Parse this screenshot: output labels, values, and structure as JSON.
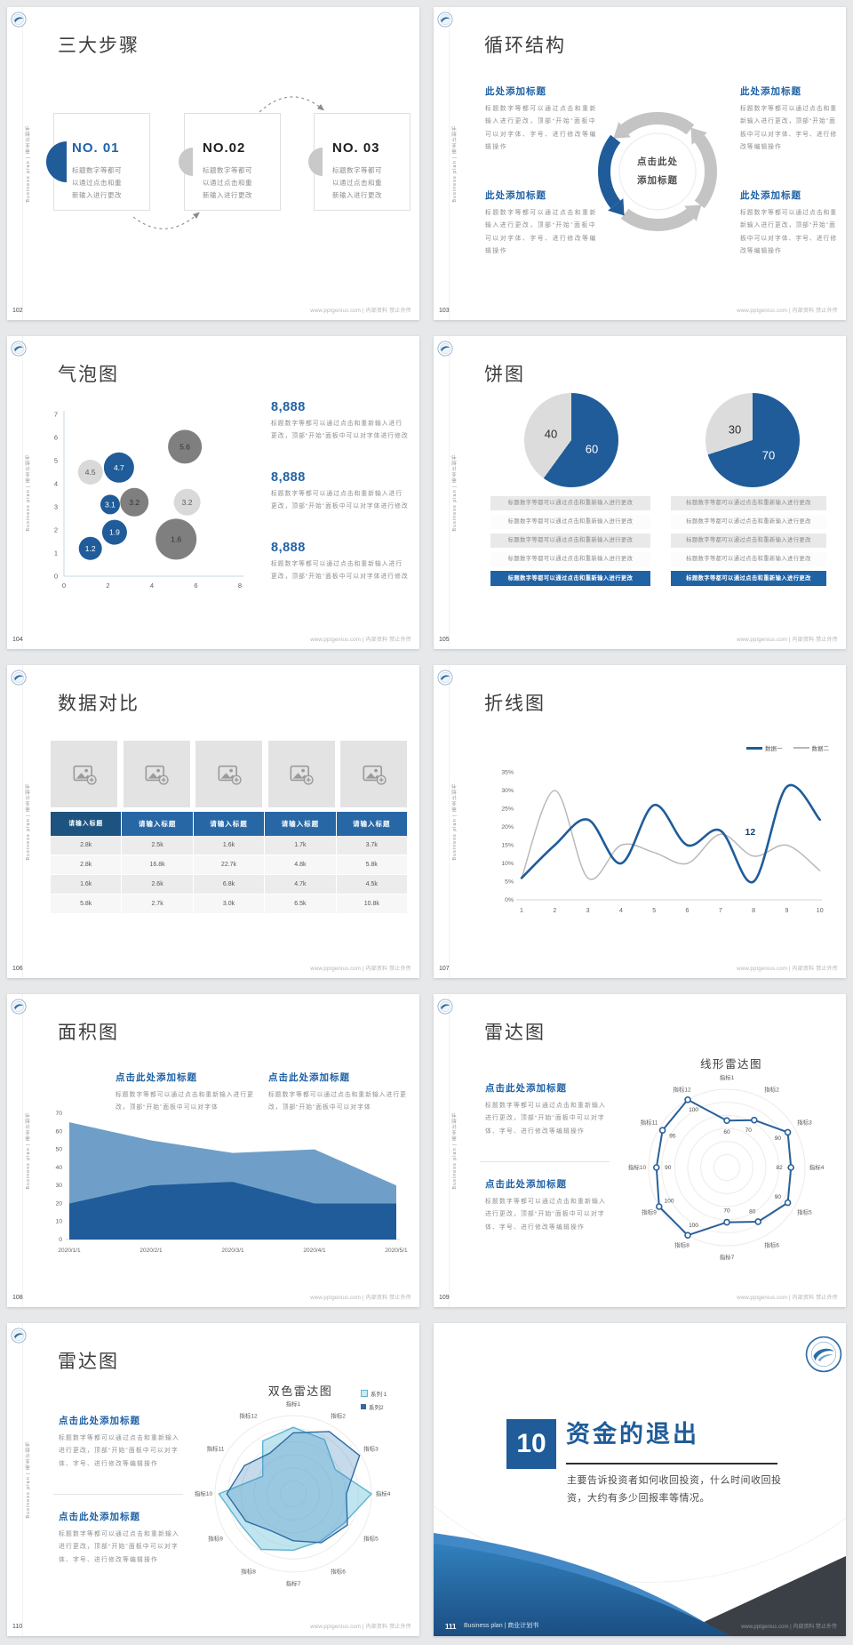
{
  "common": {
    "sidebar": "Business plan | 商业计划书",
    "footer_url": "www.pptgenius.com | 内部资料 禁止外传"
  },
  "colors": {
    "accent": "#1f5c99",
    "accent_dark": "#17456e",
    "dark_gray": "#7f7f7f",
    "light_gray": "#d9d9d9"
  },
  "slides": {
    "s102": {
      "page": "102",
      "title": "三大步骤",
      "cards": [
        {
          "no": "NO. 01",
          "body": "标题数字等都可以通过点击和重新输入进行更改"
        },
        {
          "no": "NO.02",
          "body": "标题数字等都可以通过点击和重新输入进行更改"
        },
        {
          "no": "NO. 03",
          "body": "标题数字等都可以通过点击和重新输入进行更改"
        }
      ]
    },
    "s103": {
      "page": "103",
      "title": "循环结构",
      "center": "点击此处添加标题",
      "blocks": [
        {
          "heading": "此处添加标题",
          "body": "标题数字等都可以通过点击和重新输入进行更改，顶部“开始”面板中可以对字体、字号、进行修改等编辑操作"
        },
        {
          "heading": "此处添加标题",
          "body": "标题数字等都可以通过点击和重新输入进行更改，顶部“开始”面板中可以对字体、字号、进行修改等编辑操作"
        },
        {
          "heading": "此处添加标题",
          "body": "标题数字等都可以通过点击和重新输入进行更改，顶部“开始”面板中可以对字体、字号、进行修改等编辑操作"
        },
        {
          "heading": "此处添加标题",
          "body": "标题数字等都可以通过点击和重新输入进行更改，顶部“开始”面板中可以对字体、字号、进行修改等编辑操作"
        }
      ]
    },
    "s104": {
      "page": "104",
      "title": "气泡图",
      "stats": [
        {
          "value": "8,888",
          "body": "标题数字等都可以通过点击和重新输入进行更改，顶部“开始”面板中可以对字体进行修改"
        },
        {
          "value": "8,888",
          "body": "标题数字等都可以通过点击和重新输入进行更改，顶部“开始”面板中可以对字体进行修改"
        },
        {
          "value": "8,888",
          "body": "标题数字等都可以通过点击和重新输入进行更改，顶部“开始”面板中可以对字体进行修改"
        }
      ]
    },
    "s105": {
      "page": "105",
      "title": "饼图",
      "row_text": "标题数字等都可以通过点击和重新输入进行更改"
    },
    "s106": {
      "page": "106",
      "title": "数据对比"
    },
    "s107": {
      "page": "107",
      "title": "折线图"
    },
    "s108": {
      "page": "108",
      "title": "面积图",
      "blocks": [
        {
          "heading": "点击此处添加标题",
          "body": "标题数字等都可以通过点击和重新输入进行更改，顶部“开始”面板中可以对字体"
        },
        {
          "heading": "点击此处添加标题",
          "body": "标题数字等都可以通过点击和重新输入进行更改，顶部“开始”面板中可以对字体"
        }
      ]
    },
    "s109": {
      "page": "109",
      "title": "雷达图",
      "blocks": [
        {
          "heading": "点击此处添加标题",
          "body": "标题数字等都可以通过点击和重新输入进行更改，顶部“开始”面板中可以对字体、字号、进行修改等编辑操作"
        },
        {
          "heading": "点击此处添加标题",
          "body": "标题数字等都可以通过点击和重新输入进行更改，顶部“开始”面板中可以对字体、字号、进行修改等编辑操作"
        }
      ]
    },
    "s110": {
      "page": "110",
      "title": "雷达图",
      "blocks": [
        {
          "heading": "点击此处添加标题",
          "body": "标题数字等都可以通过点击和重新输入进行更改，顶部“开始”面板中可以对字体、字号、进行修改等编辑操作"
        },
        {
          "heading": "点击此处添加标题",
          "body": "标题数字等都可以通过点击和重新输入进行更改，顶部“开始”面板中可以对字体、字号、进行修改等编辑操作"
        }
      ]
    },
    "s111": {
      "page": "111",
      "number": "10",
      "title": "资金的退出",
      "body": "主要告诉投资者如何收回投资，什么时间收回投资，大约有多少回报率等情况。",
      "footer_brand": "Business plan | 商业计划书"
    }
  },
  "chart_data": [
    {
      "id": "bubble",
      "type": "scatter",
      "x_range": [
        0,
        8
      ],
      "y_range": [
        0,
        7
      ],
      "x_ticks": [
        0,
        2,
        4,
        6,
        8
      ],
      "y_ticks": [
        0,
        1,
        2,
        3,
        4,
        5,
        6,
        7
      ],
      "colors": {
        "blue": "#1f5c99",
        "dark": "#7f7f7f",
        "light": "#d9d9d9"
      },
      "points": [
        {
          "x": 1.2,
          "y": 4.5,
          "r": 14,
          "label": "4.5",
          "series": "light"
        },
        {
          "x": 2.5,
          "y": 4.7,
          "r": 17,
          "label": "4.7",
          "series": "blue"
        },
        {
          "x": 5.5,
          "y": 5.6,
          "r": 19,
          "label": "5.6",
          "series": "dark"
        },
        {
          "x": 2.1,
          "y": 3.1,
          "r": 11,
          "label": "3.1",
          "series": "blue"
        },
        {
          "x": 3.2,
          "y": 3.2,
          "r": 16,
          "label": "3.2",
          "series": "dark"
        },
        {
          "x": 5.6,
          "y": 3.2,
          "r": 15,
          "label": "3.2",
          "series": "light"
        },
        {
          "x": 2.3,
          "y": 1.9,
          "r": 14,
          "label": "1.9",
          "series": "blue"
        },
        {
          "x": 1.2,
          "y": 1.2,
          "r": 13,
          "label": "1.2",
          "series": "blue"
        },
        {
          "x": 5.1,
          "y": 1.6,
          "r": 23,
          "label": "1.6",
          "series": "dark"
        }
      ]
    },
    {
      "id": "pie1",
      "type": "pie",
      "colors": [
        "#1f5c99",
        "#dcdcdc"
      ],
      "values": [
        {
          "label": "60",
          "value": 60
        },
        {
          "label": "40",
          "value": 40
        }
      ]
    },
    {
      "id": "pie2",
      "type": "pie",
      "colors": [
        "#1f5c99",
        "#dcdcdc"
      ],
      "values": [
        {
          "label": "70",
          "value": 70
        },
        {
          "label": "30",
          "value": 30
        }
      ]
    },
    {
      "id": "compare_table",
      "type": "table",
      "headers": [
        "请输入标题",
        "请输入标题",
        "请输入标题",
        "请输入标题",
        "请输入标题"
      ],
      "rows": [
        [
          "2.8k",
          "2.5k",
          "1.6k",
          "1.7k",
          "3.7k"
        ],
        [
          "2.8k",
          "16.8k",
          "22.7k",
          "4.8k",
          "5.8k"
        ],
        [
          "1.6k",
          "2.6k",
          "6.8k",
          "4.7k",
          "4.5k"
        ],
        [
          "5.8k",
          "2.7k",
          "3.0k",
          "6.5k",
          "10.8k"
        ]
      ]
    },
    {
      "id": "line",
      "type": "line",
      "x": [
        1,
        2,
        3,
        4,
        5,
        6,
        7,
        8,
        9,
        10
      ],
      "y_ticks": [
        "0%",
        "5%",
        "10%",
        "15%",
        "20%",
        "25%",
        "30%",
        "35%"
      ],
      "y_max": 35,
      "series": [
        {
          "name": "数据一",
          "color": "#1f5c99",
          "values": [
            6,
            15,
            22,
            10,
            26,
            15,
            19,
            5,
            31,
            22
          ]
        },
        {
          "name": "数据二",
          "color": "#b9b9b9",
          "values": [
            6,
            30,
            6,
            15,
            13,
            10,
            18,
            12,
            15,
            8
          ]
        }
      ],
      "annotation": {
        "text": "12",
        "x": 7.9,
        "y": 18.5
      }
    },
    {
      "id": "area",
      "type": "area",
      "x_labels": [
        "2020/1/1",
        "2020/2/1",
        "2020/3/1",
        "2020/4/1",
        "2020/5/1"
      ],
      "y_ticks": [
        0,
        10,
        20,
        30,
        40,
        50,
        60,
        70
      ],
      "y_max": 70,
      "series": [
        {
          "name": "light",
          "color": "#6f9fc8",
          "values": [
            65,
            55,
            48,
            50,
            30
          ]
        },
        {
          "name": "dark",
          "color": "#1f5c99",
          "values": [
            20,
            30,
            32,
            20,
            20
          ]
        }
      ]
    },
    {
      "id": "radar_line",
      "type": "radar",
      "title": "线形雷达图",
      "max": 100,
      "axes": [
        "指标1",
        "指标2",
        "指标3",
        "指标4",
        "指标5",
        "指标6",
        "指标7",
        "指标8",
        "指标9",
        "指标10",
        "指标11",
        "指标12"
      ],
      "series": [
        {
          "color": "#2a6099",
          "markers": true,
          "show_values": true,
          "values": [
            60,
            70,
            90,
            82,
            90,
            80,
            70,
            100,
            100,
            90,
            95,
            100
          ]
        }
      ]
    },
    {
      "id": "radar_dual",
      "type": "radar",
      "title": "双色雷达图",
      "max": 100,
      "axes": [
        "指标1",
        "指标2",
        "指标3",
        "指标4",
        "指标5",
        "指标6",
        "指标7",
        "指标8",
        "指标9",
        "指标10",
        "指标11",
        "指标12"
      ],
      "series": [
        {
          "name": "系列 1",
          "color": "#5fb4d1",
          "fill": "rgba(140,208,227,0.55)",
          "values": [
            85,
            80,
            62,
            100,
            75,
            70,
            72,
            82,
            78,
            95,
            45,
            78
          ]
        },
        {
          "name": "系列2",
          "color": "#2e6da4",
          "fill": "rgba(62,132,188,0.30)",
          "values": [
            78,
            92,
            98,
            68,
            80,
            72,
            60,
            55,
            70,
            85,
            72,
            60
          ]
        }
      ]
    }
  ]
}
